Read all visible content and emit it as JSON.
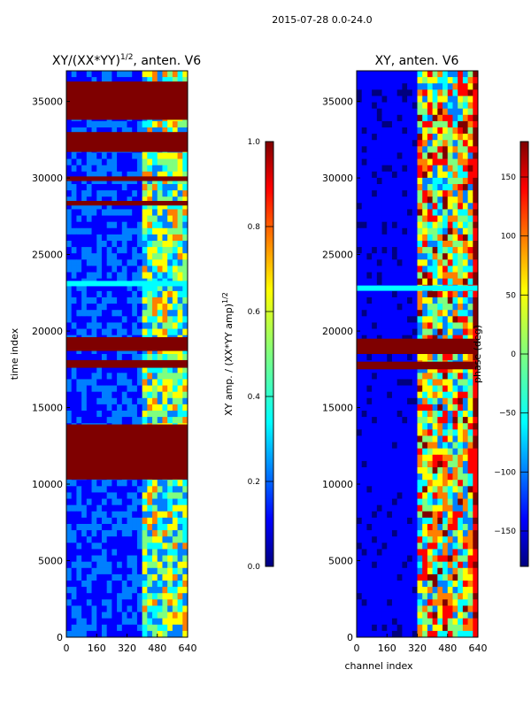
{
  "suptitle": "2015-07-28 0.0-24.0",
  "ylabel": "time index",
  "xlabel": "channel index",
  "chart_data": [
    {
      "type": "heatmap",
      "title_main": "XY/(XX*YY)",
      "title_sup": "1/2",
      "title_tail": ", anten. V6",
      "xlim": [
        0,
        640
      ],
      "ylim": [
        0,
        37000
      ],
      "xticks": [
        0,
        160,
        320,
        480,
        640
      ],
      "yticks": [
        0,
        5000,
        10000,
        15000,
        20000,
        25000,
        30000,
        35000
      ],
      "colorbar": {
        "range": [
          0.0,
          1.0
        ],
        "ticks": [
          0.0,
          0.2,
          0.4,
          0.6,
          0.8,
          1.0
        ],
        "tick_labels": [
          "0.0",
          "0.2",
          "0.4",
          "0.6",
          "0.8",
          "1.0"
        ],
        "label_main": "XY amp. / (XX*YY amp)",
        "label_sup": "1/2"
      },
      "saturated_time_blocks": [
        [
          10300,
          13900
        ],
        [
          17600,
          18100
        ],
        [
          18700,
          19600
        ],
        [
          28200,
          28500
        ],
        [
          29800,
          30100
        ],
        [
          31700,
          33000
        ],
        [
          33800,
          36300
        ]
      ],
      "active_channel_range": [
        400,
        640
      ],
      "bright_time_rows": [
        23100
      ]
    },
    {
      "type": "heatmap",
      "title": "XY, anten. V6",
      "xlim": [
        0,
        640
      ],
      "ylim": [
        0,
        37000
      ],
      "xticks": [
        0,
        160,
        320,
        480,
        640
      ],
      "yticks": [
        0,
        5000,
        10000,
        15000,
        20000,
        25000,
        30000,
        35000
      ],
      "colorbar": {
        "range": [
          -180,
          180
        ],
        "ticks": [
          -150,
          -100,
          -50,
          0,
          50,
          100,
          150
        ],
        "tick_labels": [
          "−150",
          "−100",
          "−50",
          "0",
          "50",
          "100",
          "150"
        ],
        "label": "phase (deg)"
      },
      "saturated_time_blocks": [
        [
          17500,
          18000
        ],
        [
          18500,
          19500
        ]
      ],
      "active_channel_range": [
        320,
        640
      ],
      "bright_time_rows": [
        22800
      ]
    }
  ],
  "colormap_stops": [
    "#00007f",
    "#0000ff",
    "#007fff",
    "#00ffff",
    "#7fff7f",
    "#ffff00",
    "#ff7f00",
    "#ff0000",
    "#7f0000"
  ]
}
